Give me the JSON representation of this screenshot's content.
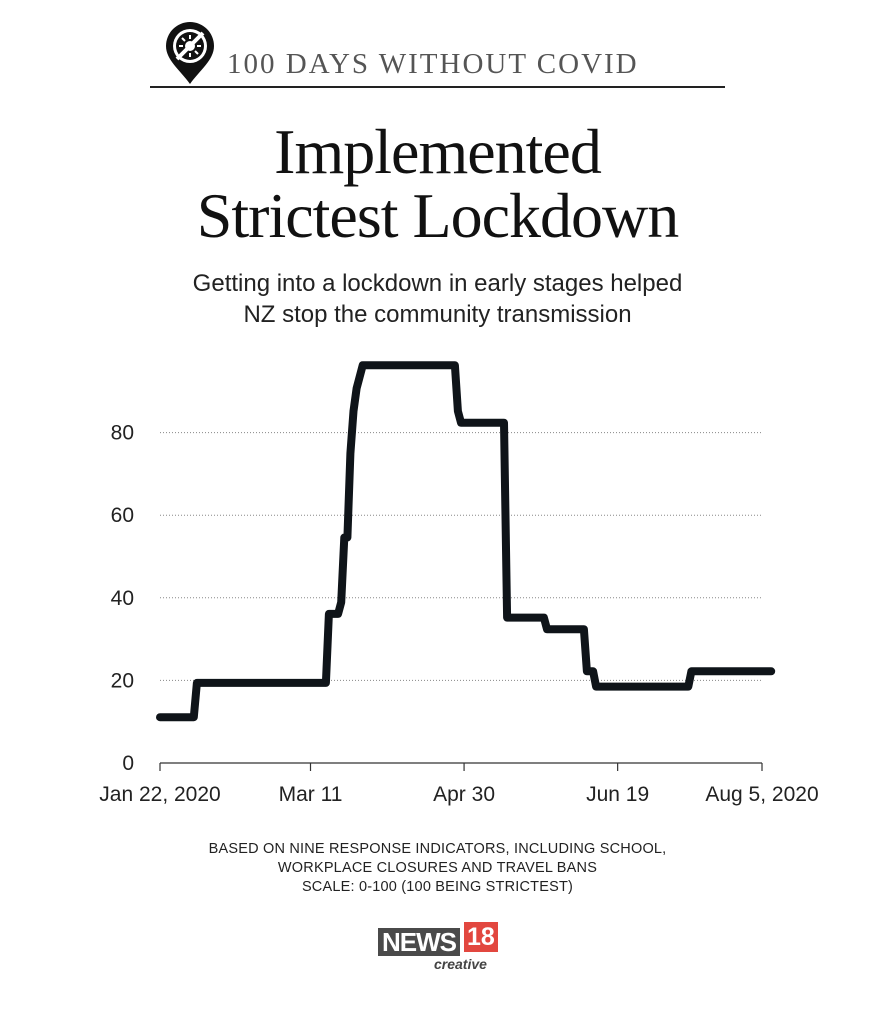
{
  "header": {
    "kicker": "100 DAYS WITHOUT COVID",
    "logo_icon": "no-virus-icon"
  },
  "title_line1": "Implemented",
  "title_line2": "Strictest Lockdown",
  "subtitle_line1": "Getting into a lockdown in early stages helped",
  "subtitle_line2": "NZ stop the community transmission",
  "footnote": {
    "line1": "BASED ON NINE RESPONSE INDICATORS, INCLUDING SCHOOL,",
    "line2": "WORKPLACE CLOSURES AND TRAVEL BANS",
    "line3": "SCALE: 0-100 (100 BEING STRICTEST)"
  },
  "brand": {
    "name": "NEWS",
    "number": "18",
    "sub": "creative",
    "accent_color": "#e2473f"
  },
  "chart_data": {
    "type": "line",
    "title": "",
    "xlabel": "",
    "ylabel": "",
    "x_range": [
      "2020-01-22",
      "2020-08-05"
    ],
    "ylim": [
      0,
      100
    ],
    "y_ticks": [
      0,
      20,
      40,
      60,
      80
    ],
    "x_ticks": [
      {
        "date": "2020-01-22",
        "label": "Jan 22, 2020"
      },
      {
        "date": "2020-03-11",
        "label": "Mar 11"
      },
      {
        "date": "2020-04-30",
        "label": "Apr 30"
      },
      {
        "date": "2020-06-19",
        "label": "Jun 19"
      },
      {
        "date": "2020-08-05",
        "label": "Aug 5, 2020"
      }
    ],
    "grid": "horizontal dotted",
    "line_color": "#0f1419",
    "series": [
      {
        "name": "",
        "points": [
          {
            "x": "2020-01-22",
            "y": 11.1
          },
          {
            "x": "2020-02-02",
            "y": 11.1
          },
          {
            "x": "2020-02-03",
            "y": 19.4
          },
          {
            "x": "2020-03-16",
            "y": 19.4
          },
          {
            "x": "2020-03-17",
            "y": 36.1
          },
          {
            "x": "2020-03-20",
            "y": 36.1
          },
          {
            "x": "2020-03-21",
            "y": 38.9
          },
          {
            "x": "2020-03-22",
            "y": 54.6
          },
          {
            "x": "2020-03-23",
            "y": 54.6
          },
          {
            "x": "2020-03-24",
            "y": 75.0
          },
          {
            "x": "2020-03-25",
            "y": 85.2
          },
          {
            "x": "2020-03-26",
            "y": 90.7
          },
          {
            "x": "2020-03-28",
            "y": 96.3
          },
          {
            "x": "2020-04-27",
            "y": 96.3
          },
          {
            "x": "2020-04-28",
            "y": 85.2
          },
          {
            "x": "2020-04-29",
            "y": 82.4
          },
          {
            "x": "2020-05-13",
            "y": 82.4
          },
          {
            "x": "2020-05-14",
            "y": 35.2
          },
          {
            "x": "2020-05-26",
            "y": 35.2
          },
          {
            "x": "2020-05-27",
            "y": 32.4
          },
          {
            "x": "2020-06-08",
            "y": 32.4
          },
          {
            "x": "2020-06-09",
            "y": 22.2
          },
          {
            "x": "2020-06-11",
            "y": 22.2
          },
          {
            "x": "2020-06-12",
            "y": 18.5
          },
          {
            "x": "2020-07-12",
            "y": 18.5
          },
          {
            "x": "2020-07-13",
            "y": 22.2
          },
          {
            "x": "2020-08-08",
            "y": 22.2
          }
        ]
      }
    ]
  }
}
